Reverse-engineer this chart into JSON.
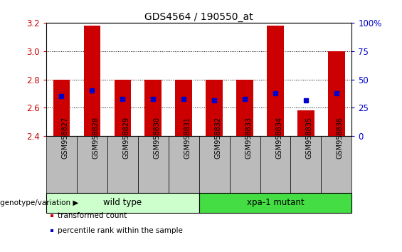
{
  "title": "GDS4564 / 190550_at",
  "samples": [
    "GSM958827",
    "GSM958828",
    "GSM958829",
    "GSM958830",
    "GSM958831",
    "GSM958832",
    "GSM958833",
    "GSM958834",
    "GSM958835",
    "GSM958836"
  ],
  "bar_bottom": 2.4,
  "bar_top": [
    2.8,
    3.18,
    2.8,
    2.8,
    2.8,
    2.8,
    2.8,
    3.18,
    2.58,
    3.0
  ],
  "percentile_values": [
    2.68,
    2.72,
    2.66,
    2.66,
    2.66,
    2.65,
    2.66,
    2.7,
    2.65,
    2.7
  ],
  "ylim": [
    2.4,
    3.2
  ],
  "yticks": [
    2.4,
    2.6,
    2.8,
    3.0,
    3.2
  ],
  "right_yticks": [
    0,
    25,
    50,
    75,
    100
  ],
  "bar_color": "#cc0000",
  "percentile_color": "#0000cc",
  "left_tick_color": "#cc0000",
  "right_tick_color": "#0000cc",
  "groups": [
    {
      "label": "wild type",
      "start": 0,
      "end": 5,
      "color": "#ccffcc"
    },
    {
      "label": "xpa-1 mutant",
      "start": 5,
      "end": 10,
      "color": "#44dd44"
    }
  ],
  "genotype_label": "genotype/variation",
  "legend_items": [
    {
      "color": "#cc0000",
      "label": "transformed count"
    },
    {
      "color": "#0000cc",
      "label": "percentile rank within the sample"
    }
  ],
  "bar_width": 0.55,
  "tick_label_bg": "#bbbbbb"
}
